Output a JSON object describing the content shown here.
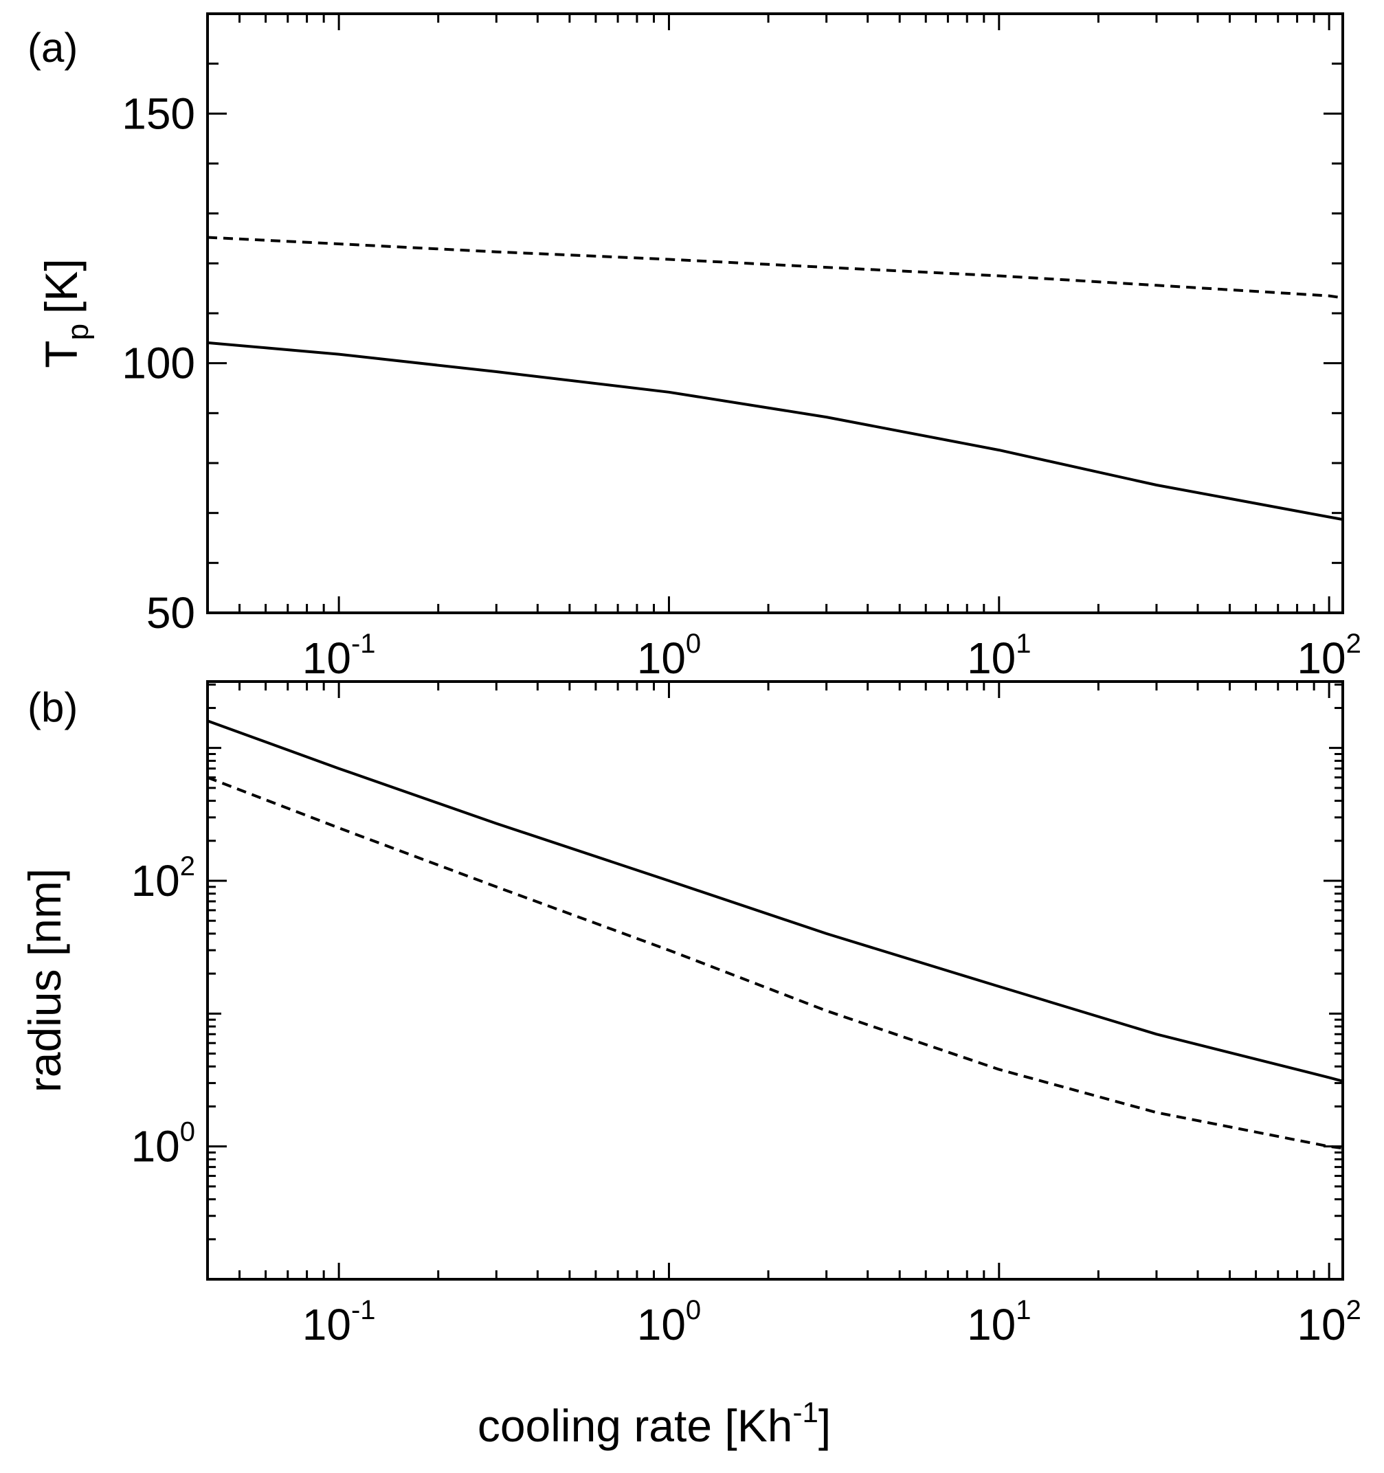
{
  "chart_data": [
    {
      "type": "line",
      "panel_label": "(a)",
      "xscale": "log",
      "xlim": [
        0.04,
        110
      ],
      "ylim": [
        50,
        170
      ],
      "yscale": "linear",
      "ylabel": {
        "main": "T",
        "sub": "p",
        "unit": "[K]"
      },
      "x_ticks": [
        {
          "base": "10",
          "exp": "-1",
          "value": 0.1
        },
        {
          "base": "10",
          "exp": "0",
          "value": 1
        },
        {
          "base": "10",
          "exp": "1",
          "value": 10
        },
        {
          "base": "10",
          "exp": "2",
          "value": 100
        }
      ],
      "y_ticks": [
        "50",
        "100",
        "150"
      ],
      "series": [
        {
          "style": "solid",
          "x": [
            0.04,
            0.1,
            0.3,
            1,
            3,
            10,
            30,
            100,
            110
          ],
          "y": [
            104.1,
            101.8,
            98.3,
            94.2,
            89.2,
            82.6,
            75.6,
            69.2,
            68.7
          ]
        },
        {
          "style": "dashed",
          "x": [
            0.04,
            0.1,
            0.3,
            1,
            3,
            10,
            30,
            100,
            110
          ],
          "y": [
            125.2,
            123.9,
            122.3,
            120.8,
            119.2,
            117.5,
            115.6,
            113.5,
            113.1
          ]
        }
      ]
    },
    {
      "type": "line",
      "panel_label": "(b)",
      "xscale": "log",
      "xlim": [
        0.04,
        110
      ],
      "yscale": "log",
      "ylim": [
        0.1,
        3162
      ],
      "ylabel": "radius [nm]",
      "xlabel": {
        "main": "cooling rate [Kh",
        "exp": "-1",
        "close": "]"
      },
      "x_ticks": [
        {
          "base": "10",
          "exp": "-1",
          "value": 0.1
        },
        {
          "base": "10",
          "exp": "0",
          "value": 1
        },
        {
          "base": "10",
          "exp": "1",
          "value": 10
        },
        {
          "base": "10",
          "exp": "2",
          "value": 100
        }
      ],
      "y_ticks": [
        {
          "base": "10",
          "exp": "0",
          "value": 1
        },
        {
          "base": "10",
          "exp": "2",
          "value": 100
        }
      ],
      "series": [
        {
          "style": "solid",
          "x": [
            0.04,
            0.1,
            0.3,
            1,
            3,
            10,
            30,
            100,
            110
          ],
          "y": [
            1600,
            700,
            270,
            100,
            40,
            16,
            7,
            3.3,
            3.1
          ]
        },
        {
          "style": "dashed",
          "x": [
            0.04,
            0.1,
            0.3,
            1,
            3,
            10,
            30,
            100,
            110
          ],
          "y": [
            600,
            250,
            90,
            30,
            10.5,
            3.8,
            1.8,
            1.0,
            0.97
          ]
        }
      ]
    }
  ]
}
